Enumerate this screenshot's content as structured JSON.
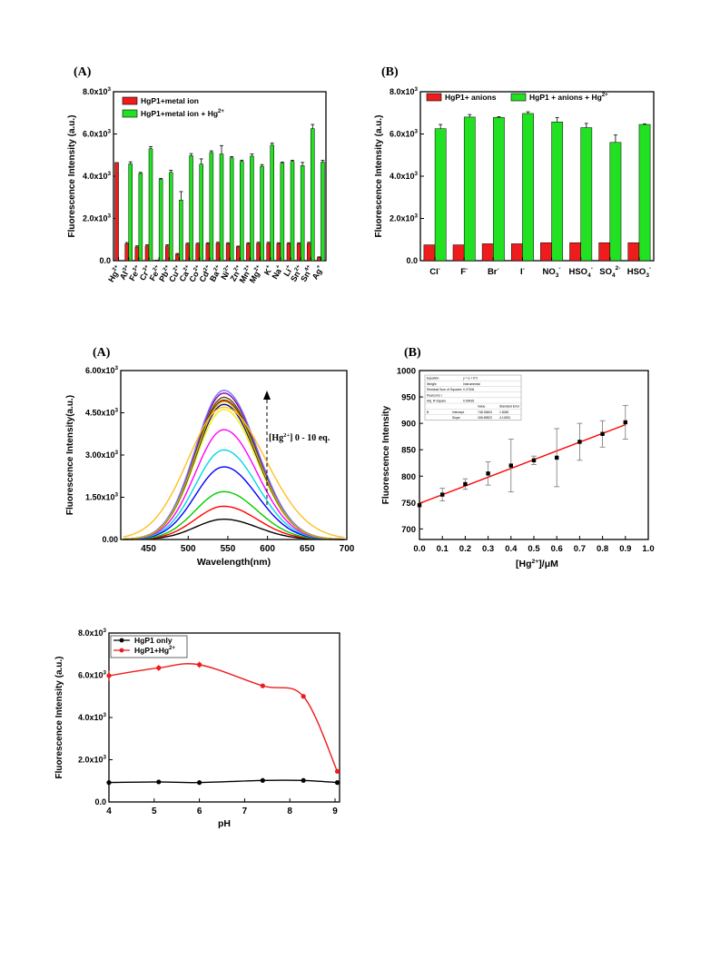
{
  "panels": {
    "a1": "(A)",
    "b1": "(B)",
    "a2": "(A)",
    "b2": "(B)"
  },
  "chart_data": [
    {
      "id": "metal-bar",
      "type": "bar",
      "ylabel": "Fluorescence Intensity (a.u.)",
      "ylim": [
        0,
        8000
      ],
      "yticks": [
        {
          "v": 0,
          "m": "0.0"
        },
        {
          "v": 2000,
          "m": "2.0x10",
          "e": "3"
        },
        {
          "v": 4000,
          "m": "4.0x10",
          "e": "3"
        },
        {
          "v": 6000,
          "m": "6.0x10",
          "e": "3"
        },
        {
          "v": 8000,
          "m": "8.0x10",
          "e": "3"
        }
      ],
      "categories": [
        {
          "b": "Hg",
          "s": "2+"
        },
        {
          "b": "Al",
          "s": "3+"
        },
        {
          "b": "Fe",
          "s": "3+"
        },
        {
          "b": "Cr",
          "s": "3+"
        },
        {
          "b": "Fe",
          "s": "2+"
        },
        {
          "b": "Pb",
          "s": "2+"
        },
        {
          "b": "Cu",
          "s": "2+"
        },
        {
          "b": "Ca",
          "s": "2+"
        },
        {
          "b": "Co",
          "s": "2+"
        },
        {
          "b": "Cd",
          "s": "2+"
        },
        {
          "b": "Ba",
          "s": "2+"
        },
        {
          "b": "Ni",
          "s": "2+"
        },
        {
          "b": "Zn",
          "s": "2+"
        },
        {
          "b": "Mn",
          "s": "2+"
        },
        {
          "b": "Mg",
          "s": "2+"
        },
        {
          "b": "K",
          "s": "+"
        },
        {
          "b": "Na",
          "s": "+"
        },
        {
          "b": "Li",
          "s": "+"
        },
        {
          "b": "Sn",
          "s": "2+"
        },
        {
          "b": "Sn",
          "s": "4+"
        },
        {
          "b": "Ag",
          "s": "+"
        }
      ],
      "series": [
        {
          "name": "HgP1+metal ion",
          "color": "#ee1c1c",
          "values": [
            4650,
            800,
            650,
            700,
            30,
            700,
            300,
            780,
            780,
            800,
            820,
            800,
            650,
            800,
            820,
            820,
            800,
            800,
            800,
            820,
            150
          ],
          "errors": [
            0,
            60,
            50,
            50,
            0,
            50,
            40,
            50,
            50,
            50,
            50,
            50,
            40,
            50,
            50,
            50,
            50,
            50,
            50,
            50,
            30
          ]
        },
        {
          "name": "HgP1+metal ion + Hg",
          "sup": "2+",
          "color": "#22e022",
          "values": [
            0,
            4580,
            4130,
            5300,
            3850,
            4180,
            2870,
            4970,
            4570,
            5120,
            5050,
            4870,
            4700,
            4950,
            4470,
            5470,
            4620,
            4700,
            4500,
            6250,
            4670
          ],
          "errors": [
            0,
            100,
            50,
            100,
            50,
            100,
            400,
            100,
            250,
            80,
            400,
            60,
            60,
            100,
            80,
            100,
            50,
            50,
            150,
            200,
            80
          ]
        }
      ]
    },
    {
      "id": "anion-bar",
      "type": "bar",
      "ylabel": "Fluorescence Intensity (a.u.)",
      "ylim": [
        0,
        8000
      ],
      "yticks": [
        {
          "v": 0,
          "m": "0.0"
        },
        {
          "v": 2000,
          "m": "2.0x10",
          "e": "3"
        },
        {
          "v": 4000,
          "m": "4.0x10",
          "e": "3"
        },
        {
          "v": 6000,
          "m": "6.0x10",
          "e": "3"
        },
        {
          "v": 8000,
          "m": "8.0x10",
          "e": "3"
        }
      ],
      "categories": [
        {
          "b": "Cl",
          "s": "-"
        },
        {
          "b": "F",
          "s": "-"
        },
        {
          "b": "Br",
          "s": "-"
        },
        {
          "b": "I",
          "s": "-"
        },
        {
          "b": "NO",
          "sub": "3",
          "s": "-"
        },
        {
          "b": "HSO",
          "sub": "4",
          "s": "-"
        },
        {
          "b": "SO",
          "sub": "4",
          "s": "2-"
        },
        {
          "b": "HSO",
          "sub": "3",
          "s": "-"
        }
      ],
      "series": [
        {
          "name": "HgP1+ anions",
          "color": "#ee1c1c",
          "values": [
            750,
            750,
            800,
            800,
            850,
            850,
            850,
            850
          ],
          "errors": [
            0,
            0,
            0,
            0,
            0,
            0,
            0,
            0
          ]
        },
        {
          "name": "HgP1 + anions + Hg",
          "sup": "2+",
          "color": "#22e022",
          "values": [
            6250,
            6800,
            6780,
            6970,
            6570,
            6300,
            5600,
            6450
          ],
          "errors": [
            200,
            120,
            40,
            80,
            200,
            200,
            350,
            30
          ]
        }
      ]
    },
    {
      "id": "titration",
      "type": "line",
      "xlabel": "Wavelength(nm)",
      "ylabel": "Fluorescence Intensity(a.u.)",
      "xlim": [
        415,
        700
      ],
      "ylim": [
        0,
        6000
      ],
      "xticks": [
        450,
        500,
        550,
        600,
        650,
        700
      ],
      "yticks": [
        {
          "v": 0,
          "m": "0.00"
        },
        {
          "v": 1500,
          "m": "1.50x10",
          "e": "3"
        },
        {
          "v": 3000,
          "m": "3.00x10",
          "e": "3"
        },
        {
          "v": 4500,
          "m": "4.50x10",
          "e": "3"
        },
        {
          "v": 6000,
          "m": "6.00x10",
          "e": "3"
        }
      ],
      "annotation": {
        "pre": "[Hg",
        "sup": "2+",
        "post": "] 0 - 10 eq."
      },
      "peak_nm": 545,
      "series": [
        {
          "peak": 720,
          "color": "#000000"
        },
        {
          "peak": 1180,
          "color": "#ff0000"
        },
        {
          "peak": 1700,
          "color": "#00cc00"
        },
        {
          "peak": 2580,
          "color": "#0000ff"
        },
        {
          "peak": 3180,
          "color": "#00d8e8"
        },
        {
          "peak": 3900,
          "color": "#ff00ff"
        },
        {
          "peak": 4620,
          "color": "#f0f000"
        },
        {
          "peak": 4800,
          "color": "#000090"
        },
        {
          "peak": 4950,
          "color": "#900000"
        },
        {
          "peak": 5050,
          "color": "#505000"
        },
        {
          "peak": 5200,
          "color": "#9000a0"
        },
        {
          "peak": 5300,
          "color": "#7070ff"
        },
        {
          "peak": 4900,
          "color": "#c8b400"
        },
        {
          "peak": 4700,
          "color": "#ffc020"
        }
      ]
    },
    {
      "id": "calibration",
      "type": "scatter",
      "xlabel": {
        "pre": "[Hg",
        "sup": "2+",
        "post": "]/μM"
      },
      "ylabel": "Fluorescence Intensity",
      "xlim": [
        0,
        1.0
      ],
      "ylim": [
        680,
        1000
      ],
      "xticks": [
        "0.0",
        "0.1",
        "0.2",
        "0.3",
        "0.4",
        "0.5",
        "0.6",
        "0.7",
        "0.8",
        "0.9",
        "1.0"
      ],
      "yticks": [
        700,
        750,
        800,
        850,
        900,
        950,
        1000
      ],
      "points": [
        {
          "x": 0.0,
          "y": 745,
          "e": 0
        },
        {
          "x": 0.1,
          "y": 765,
          "e": 12
        },
        {
          "x": 0.2,
          "y": 785,
          "e": 10
        },
        {
          "x": 0.3,
          "y": 805,
          "e": 22
        },
        {
          "x": 0.4,
          "y": 820,
          "e": 50
        },
        {
          "x": 0.5,
          "y": 830,
          "e": 8
        },
        {
          "x": 0.6,
          "y": 835,
          "e": 55
        },
        {
          "x": 0.7,
          "y": 865,
          "e": 35
        },
        {
          "x": 0.8,
          "y": 880,
          "e": 25
        },
        {
          "x": 0.9,
          "y": 902,
          "e": 32
        }
      ],
      "fit": {
        "intercept": 748.33,
        "slope": 165.7,
        "color": "#ff0000"
      },
      "table": {
        "rows": [
          [
            "Equation",
            "y = a + b*x"
          ],
          [
            "Weight",
            "Instrumental"
          ],
          [
            "Residual Sum of Squares",
            "0.27406"
          ],
          [
            "Pearson's r",
            ""
          ],
          [
            "Adj. R-Square",
            "0.99426"
          ]
        ],
        "head": [
          "",
          "",
          "Value",
          "Standard Error"
        ],
        "params": [
          [
            "B",
            "Intercept",
            "748.33604",
            "1.8082"
          ],
          [
            "",
            "Slope",
            "165.69822",
            "4.14531"
          ]
        ]
      }
    },
    {
      "id": "ph-line",
      "type": "line",
      "xlabel": "pH",
      "ylabel": "Fluorescence Intensity (a.u.)",
      "xlim": [
        4,
        9.1
      ],
      "ylim": [
        0,
        8000
      ],
      "xticks": [
        4,
        5,
        6,
        7,
        8,
        9
      ],
      "yticks": [
        {
          "v": 0,
          "m": "0.0"
        },
        {
          "v": 2000,
          "m": "2.0x10",
          "e": "3"
        },
        {
          "v": 4000,
          "m": "4.0x10",
          "e": "3"
        },
        {
          "v": 6000,
          "m": "6.0x10",
          "e": "3"
        },
        {
          "v": 8000,
          "m": "8.0x10",
          "e": "3"
        }
      ],
      "series": [
        {
          "name": "HgP1 only",
          "color": "#000000",
          "x": [
            4,
            5.1,
            6,
            7.4,
            8.3,
            9.05
          ],
          "y": [
            920,
            950,
            920,
            1020,
            1020,
            920
          ],
          "err": [
            40,
            40,
            40,
            40,
            40,
            40
          ]
        },
        {
          "name": "HgP1+Hg",
          "sup": "2+",
          "color": "#ee1c1c",
          "x": [
            4,
            5.1,
            6,
            7.4,
            8.3,
            9.05
          ],
          "y": [
            5980,
            6350,
            6500,
            5500,
            5000,
            1450
          ],
          "err": [
            250,
            150,
            150,
            40,
            60,
            40
          ]
        }
      ]
    }
  ]
}
